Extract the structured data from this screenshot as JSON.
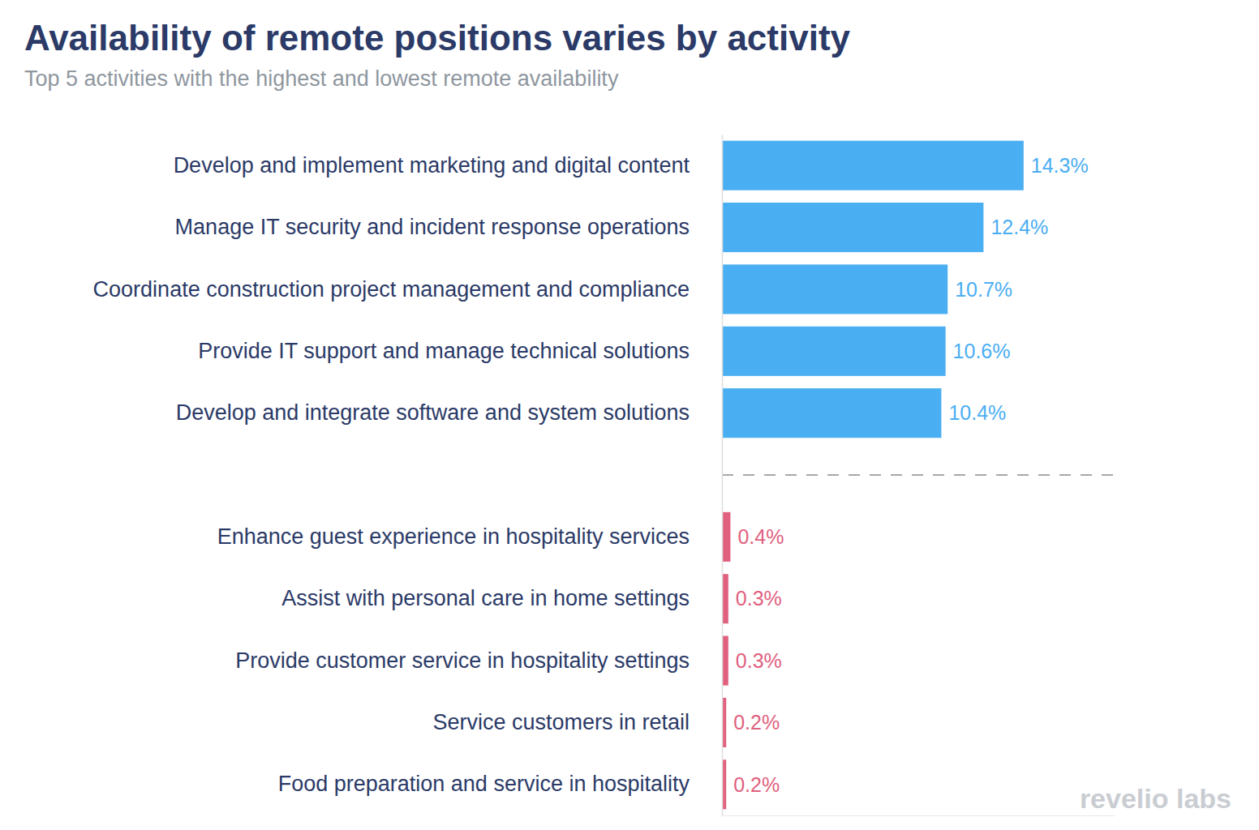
{
  "chart_data": {
    "type": "bar",
    "title": "Availability of remote positions varies by activity",
    "subtitle": "Top 5 activities with the highest and lowest remote availability",
    "source": "revelio labs",
    "orientation": "horizontal",
    "categories": [
      "Develop and implement marketing and digital content",
      "Manage IT security and incident response operations",
      "Coordinate construction project management and compliance",
      "Provide IT support and manage technical solutions",
      "Develop and integrate software and system solutions",
      "Enhance guest experience in hospitality services",
      "Assist with personal care in home settings",
      "Provide customer service in hospitality settings",
      "Service customers in retail",
      "Food preparation and service in hospitality"
    ],
    "values": [
      14.3,
      12.4,
      10.7,
      10.6,
      10.4,
      0.4,
      0.3,
      0.3,
      0.2,
      0.2
    ],
    "value_labels": [
      "14.3%",
      "12.4%",
      "10.7%",
      "10.6%",
      "10.4%",
      "0.4%",
      "0.3%",
      "0.3%",
      "0.2%",
      "0.2%"
    ],
    "colors": [
      "#4aaef2",
      "#4aaef2",
      "#4aaef2",
      "#4aaef2",
      "#4aaef2",
      "#e0607e",
      "#e0607e",
      "#e0607e",
      "#e0607e",
      "#e0607e"
    ],
    "xlim": [
      0,
      18.6
    ],
    "xticks": [],
    "data_labels": true,
    "tick_labels": "y",
    "grid": false
  }
}
